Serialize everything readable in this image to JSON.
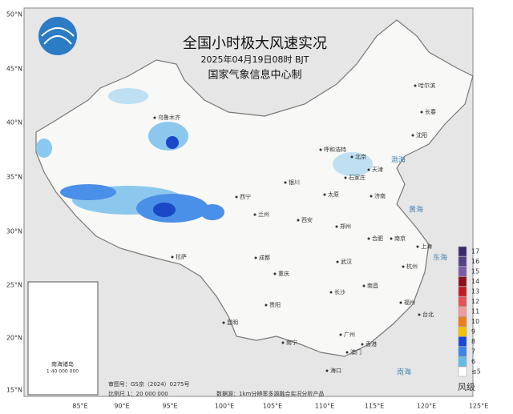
{
  "header": {
    "title": "全国小时极大风速实况",
    "time": "2025年04月19日08时 BJT",
    "agency": "国家气象信息中心制"
  },
  "lat_labels": [
    "50°N",
    "45°N",
    "40°N",
    "35°N",
    "30°N",
    "25°N",
    "20°N",
    "15°N"
  ],
  "lon_labels": [
    "85°E",
    "90°E",
    "95°E",
    "100°E",
    "105°E",
    "110°E",
    "115°E",
    "120°E",
    "125°E"
  ],
  "cities": [
    "乌鲁木齐",
    "哈尔滨",
    "长春",
    "沈阳",
    "呼和浩特",
    "北京",
    "天津",
    "石家庄",
    "银川",
    "西宁",
    "兰州",
    "太原",
    "济南",
    "郑州",
    "西安",
    "合肥",
    "南京",
    "上海",
    "杭州",
    "拉萨",
    "成都",
    "武汉",
    "重庆",
    "长沙",
    "南昌",
    "福州",
    "台北",
    "贵阳",
    "昆明",
    "南宁",
    "广州",
    "香港",
    "澳门",
    "海口"
  ],
  "seas": [
    "渤海",
    "黄海",
    "东海",
    "南海"
  ],
  "inset": {
    "title": "南海诸岛",
    "scale": "1:40 000 000"
  },
  "legend": {
    "title": "风级",
    "levels": [
      {
        "label": "17",
        "color": "#3b2a6b"
      },
      {
        "label": "16",
        "color": "#55408a"
      },
      {
        "label": "15",
        "color": "#7a5aa8"
      },
      {
        "label": "14",
        "color": "#8e0e1e"
      },
      {
        "label": "13",
        "color": "#c41a24"
      },
      {
        "label": "12",
        "color": "#e8505a"
      },
      {
        "label": "11",
        "color": "#f39aa0"
      },
      {
        "label": "10",
        "color": "#ef7d1a"
      },
      {
        "label": "9",
        "color": "#f5c400"
      },
      {
        "label": "8",
        "color": "#1747d6"
      },
      {
        "label": "7",
        "color": "#3d84ea"
      },
      {
        "label": "6",
        "color": "#62bce8"
      },
      {
        "label": "≤5",
        "color": "#ffffff"
      }
    ]
  },
  "footer": {
    "approval": "审图号：GS京（2024）0275号",
    "scale": "比例尺 1：20 000 000",
    "source": "数据源：1km分辨率多源融合实况分析产品"
  }
}
